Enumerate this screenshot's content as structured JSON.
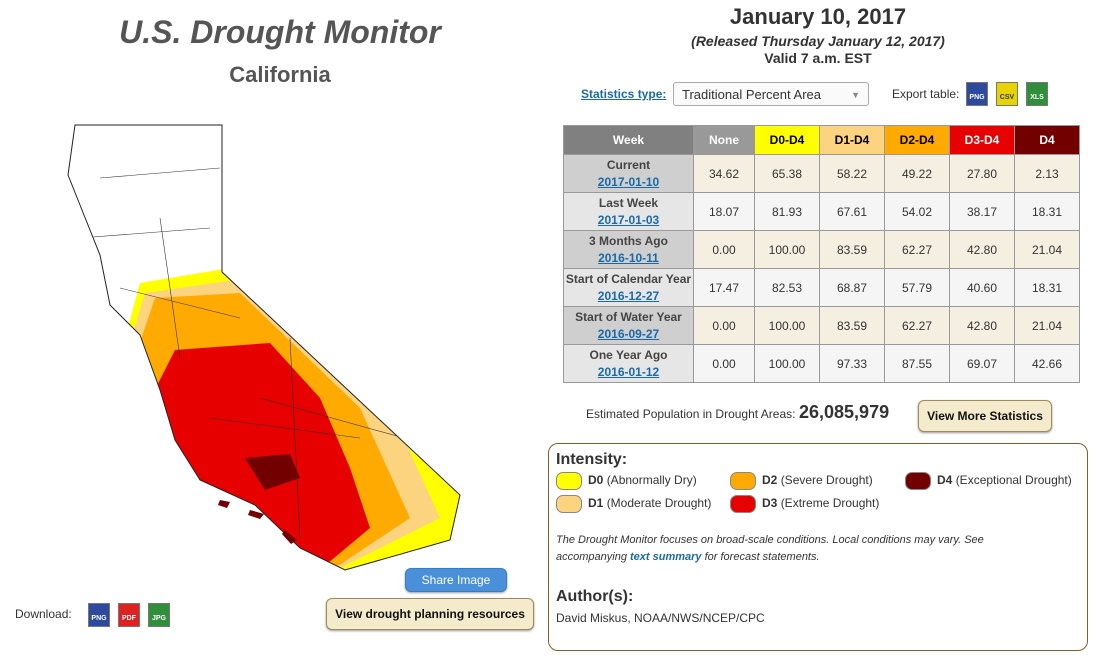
{
  "header": {
    "title": "U.S. Drought Monitor",
    "subtitle": "California"
  },
  "date": {
    "main": "January 10, 2017",
    "released": "(Released Thursday January 12, 2017)",
    "valid": "Valid 7 a.m. EST"
  },
  "stats": {
    "label": "Statistics type:",
    "select": "Traditional Percent Area",
    "export_label": "Export table:",
    "exports": [
      "PNG",
      "CSV",
      "XLS"
    ]
  },
  "table": {
    "headers": [
      "Week",
      "None",
      "D0-D4",
      "D1-D4",
      "D2-D4",
      "D3-D4",
      "D4"
    ],
    "rows": [
      {
        "label": "Current",
        "date": "2017-01-10",
        "values": [
          "34.62",
          "65.38",
          "58.22",
          "49.22",
          "27.80",
          "2.13"
        ]
      },
      {
        "label": "Last Week",
        "date": "2017-01-03",
        "values": [
          "18.07",
          "81.93",
          "67.61",
          "54.02",
          "38.17",
          "18.31"
        ]
      },
      {
        "label": "3 Months Ago",
        "date": "2016-10-11",
        "values": [
          "0.00",
          "100.00",
          "83.59",
          "62.27",
          "42.80",
          "21.04"
        ]
      },
      {
        "label": "Start of Calendar Year",
        "date": "2016-12-27",
        "values": [
          "17.47",
          "82.53",
          "68.87",
          "57.79",
          "40.60",
          "18.31"
        ]
      },
      {
        "label": "Start of Water Year",
        "date": "2016-09-27",
        "values": [
          "0.00",
          "100.00",
          "83.59",
          "62.27",
          "42.80",
          "21.04"
        ]
      },
      {
        "label": "One Year Ago",
        "date": "2016-01-12",
        "values": [
          "0.00",
          "100.00",
          "97.33",
          "87.55",
          "69.07",
          "42.66"
        ]
      }
    ]
  },
  "population": {
    "label": "Estimated Population in Drought Areas:",
    "value": "26,085,979",
    "button": "View More Statistics"
  },
  "legend": {
    "title": "Intensity:",
    "items": [
      {
        "code": "D0",
        "desc": "(Abnormally Dry)"
      },
      {
        "code": "D1",
        "desc": "(Moderate Drought)"
      },
      {
        "code": "D2",
        "desc": "(Severe Drought)"
      },
      {
        "code": "D3",
        "desc": "(Extreme Drought)"
      },
      {
        "code": "D4",
        "desc": "(Exceptional Drought)"
      }
    ],
    "note_before": "The Drought Monitor focuses on broad-scale conditions. Local conditions may vary. See accompanying",
    "note_link": "text summary",
    "note_after": "for forecast statements.",
    "authors_title": "Author(s):",
    "authors": "David Miskus, NOAA/NWS/NCEP/CPC"
  },
  "share": "Share Image",
  "download": {
    "label": "Download:",
    "formats": [
      "PNG",
      "PDF",
      "JPG"
    ]
  },
  "planning": "View drought planning resources"
}
